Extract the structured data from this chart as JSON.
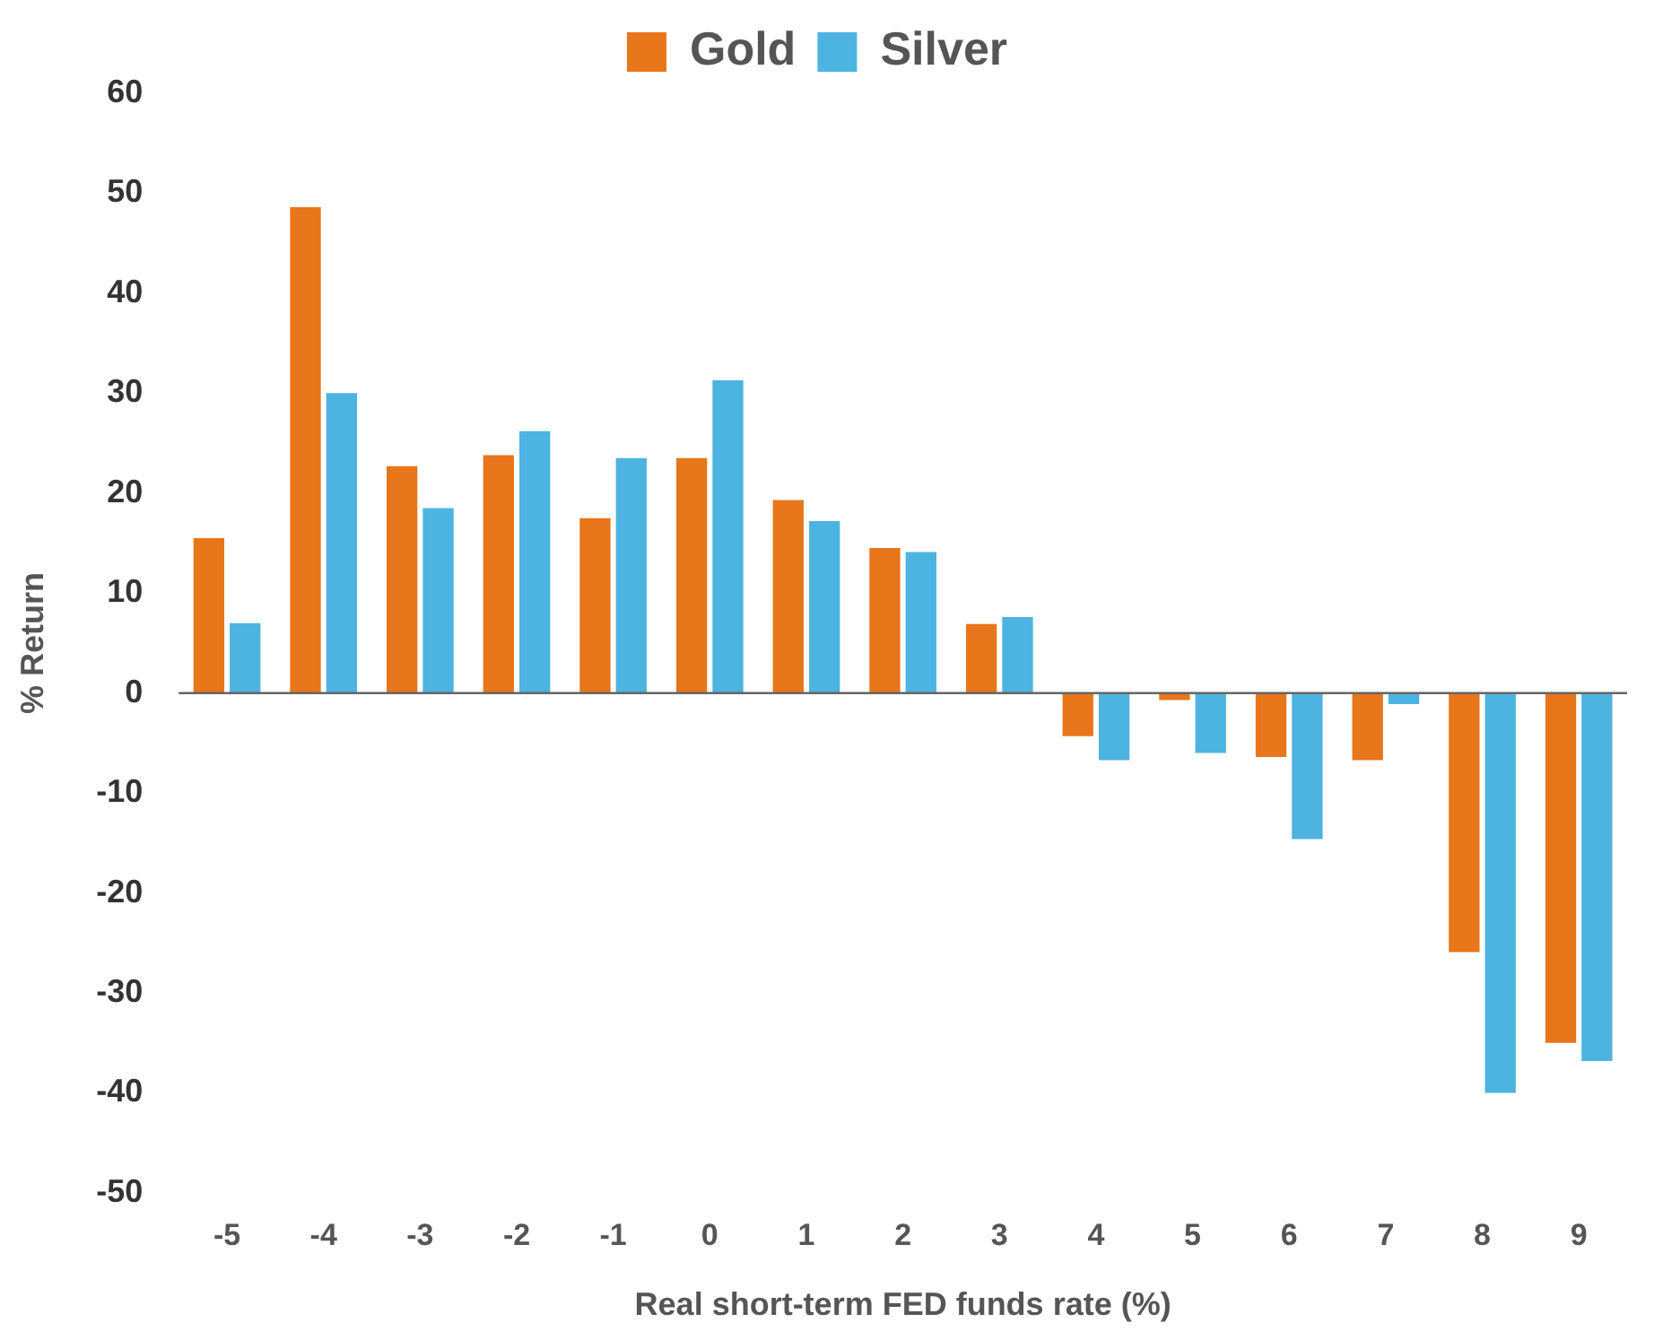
{
  "chart_data": {
    "type": "bar",
    "xlabel": "Real short-term FED funds rate (%)",
    "ylabel": "% Return",
    "categories": [
      "-5",
      "-4",
      "-3",
      "-2",
      "-1",
      "0",
      "1",
      "2",
      "3",
      "4",
      "5",
      "6",
      "7",
      "8",
      "9"
    ],
    "series": [
      {
        "name": "Gold",
        "color": "#e8761a",
        "values": [
          15.5,
          48.6,
          22.7,
          23.8,
          17.5,
          23.5,
          19.3,
          14.5,
          6.9,
          -4.3,
          -0.7,
          -6.4,
          -6.7,
          -25.9,
          -35
        ]
      },
      {
        "name": "Silver",
        "color": "#4db3e0",
        "values": [
          7,
          30,
          18.5,
          26.2,
          23.5,
          31.3,
          17.2,
          14.1,
          7.6,
          -6.7,
          -6,
          -14.6,
          -1.1,
          -40,
          -36.8
        ]
      }
    ],
    "ylim": [
      -50,
      60
    ],
    "yticks": [
      -50,
      -40,
      -30,
      -20,
      -10,
      0,
      10,
      20,
      30,
      40,
      50,
      60
    ],
    "grid": false,
    "legend": "top",
    "ref_lines": [
      {
        "axis": "y",
        "value": 0,
        "color": "#666666"
      }
    ]
  }
}
